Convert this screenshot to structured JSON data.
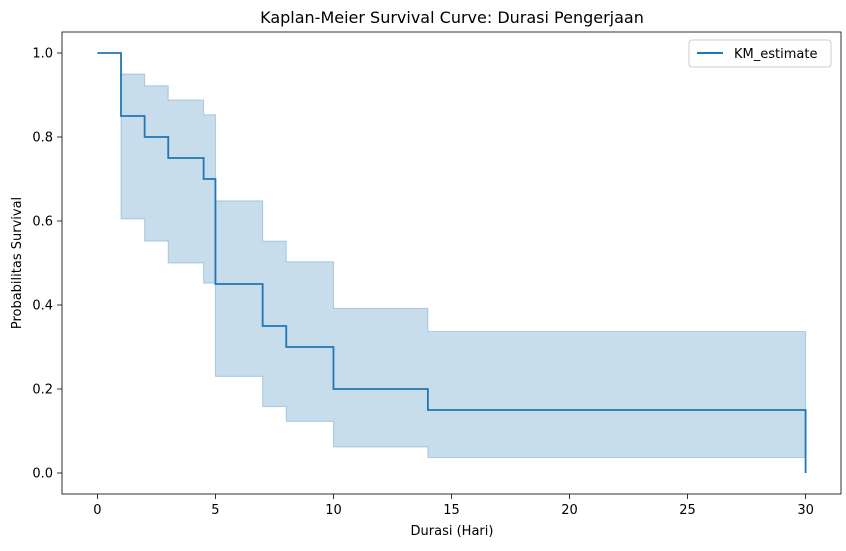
{
  "chart_data": {
    "type": "line",
    "title": "Kaplan-Meier Survival Curve: Durasi Pengerjaan",
    "xlabel": "Durasi (Hari)",
    "ylabel": "Probabilitas Survival",
    "xlim": [
      -1.5,
      31.5
    ],
    "ylim": [
      -0.05,
      1.05
    ],
    "x_ticks": [
      0,
      5,
      10,
      15,
      20,
      25,
      30
    ],
    "y_ticks": [
      0.0,
      0.2,
      0.4,
      0.6,
      0.8,
      1.0
    ],
    "x_tick_labels": [
      "0",
      "5",
      "10",
      "15",
      "20",
      "25",
      "30"
    ],
    "y_tick_labels": [
      "0.0",
      "0.2",
      "0.4",
      "0.6",
      "0.8",
      "1.0"
    ],
    "grid": false,
    "legend_position": "top-right",
    "series": [
      {
        "name": "KM_estimate",
        "color": "#1f77b4",
        "step": "post",
        "x": [
          0,
          1,
          2,
          3,
          4.5,
          5,
          7,
          8,
          10,
          14,
          30
        ],
        "y": [
          1.0,
          0.85,
          0.8,
          0.75,
          0.7,
          0.45,
          0.35,
          0.3,
          0.2,
          0.15,
          0.0
        ],
        "ci_lower": [
          1.0,
          0.605,
          0.552,
          0.5,
          0.452,
          0.23,
          0.158,
          0.123,
          0.062,
          0.037,
          0.037
        ],
        "ci_upper": [
          1.0,
          0.95,
          0.922,
          0.888,
          0.853,
          0.648,
          0.552,
          0.503,
          0.392,
          0.337,
          0.337
        ]
      }
    ]
  }
}
